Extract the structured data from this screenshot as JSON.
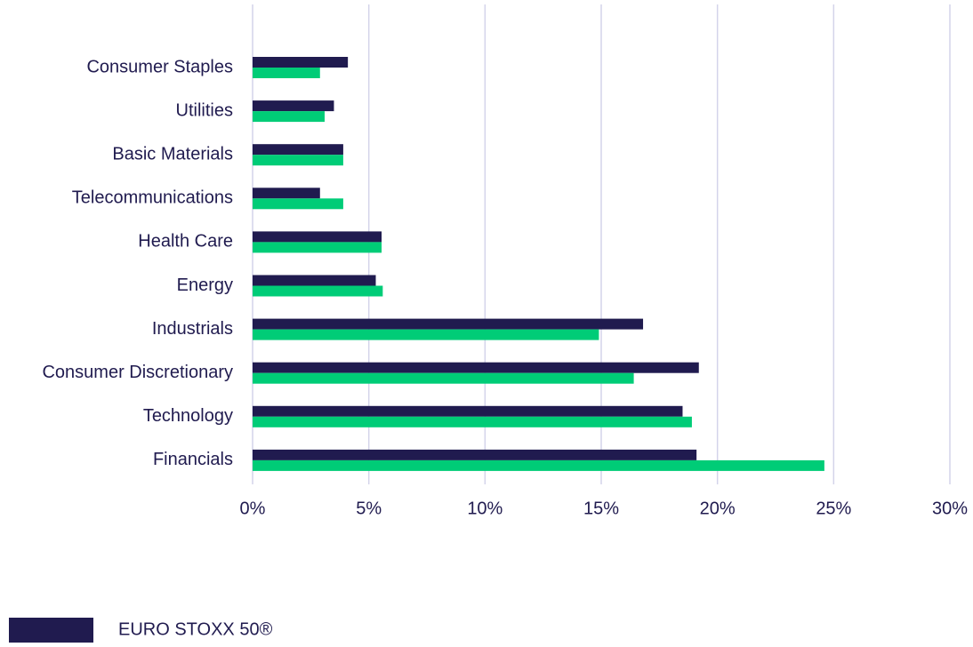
{
  "chart_data": {
    "type": "barh",
    "categories": [
      "Consumer Staples",
      "Utilities",
      "Basic Materials",
      "Telecommunications",
      "Health Care",
      "Energy",
      "Industrials",
      "Consumer Discretionary",
      "Technology",
      "Financials"
    ],
    "series": [
      {
        "name": "EURO STOXX 50®",
        "color": "#201b4f",
        "values": [
          4.1,
          3.5,
          3.9,
          2.9,
          5.55,
          5.3,
          16.8,
          19.2,
          18.5,
          19.1
        ]
      },
      {
        "color": "#00cc77",
        "values": [
          2.9,
          3.1,
          3.9,
          3.9,
          5.55,
          5.6,
          14.9,
          16.4,
          18.9,
          24.6
        ]
      }
    ],
    "xlim": [
      0,
      30
    ],
    "xticks": [
      {
        "value": 0,
        "label": "0%"
      },
      {
        "value": 5,
        "label": "5%"
      },
      {
        "value": 10,
        "label": "10%"
      },
      {
        "value": 15,
        "label": "15%"
      },
      {
        "value": 20,
        "label": "20%"
      },
      {
        "value": 25,
        "label": "25%"
      },
      {
        "value": 30,
        "label": "30%"
      }
    ],
    "grid": true
  }
}
